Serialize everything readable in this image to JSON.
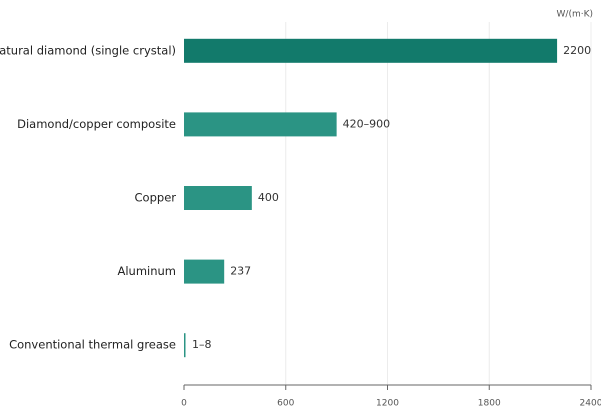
{
  "chart_data": {
    "type": "bar",
    "orientation": "horizontal",
    "x_label": "W/(m·K)",
    "categories": [
      "Natural diamond (single crystal)",
      "Diamond/copper composite",
      "Copper",
      "Aluminum",
      "Conventional thermal grease"
    ],
    "values": [
      2200,
      900,
      400,
      237,
      8
    ],
    "value_labels": [
      null,
      "420–900",
      null,
      null,
      "1–8"
    ],
    "colors": [
      "#127a6b",
      "#2b9484",
      "#2b9484",
      "#2b9484",
      "#2b9484"
    ],
    "xlim": [
      0,
      2400
    ],
    "xticks": [
      0,
      600,
      1200,
      1800,
      2400
    ],
    "grid": true
  }
}
